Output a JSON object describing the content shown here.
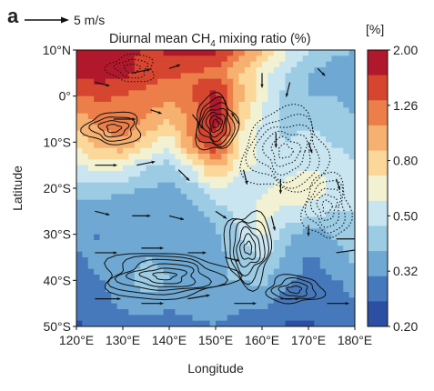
{
  "figure": {
    "panel_label": "a",
    "reference_vector": {
      "label": "5 m/s",
      "speed": 5
    }
  },
  "chart_data": {
    "type": "heatmap",
    "title": "Diurnal mean CH",
    "title_sub": "4",
    "title_end": " mixing ratio (%)",
    "xlabel": "Longitude",
    "ylabel": "Latitude",
    "xlim": [
      120,
      180
    ],
    "ylim": [
      -50,
      10
    ],
    "x_ticks": [
      120,
      130,
      140,
      150,
      160,
      170,
      180
    ],
    "x_tick_labels": [
      "120°E",
      "130°E",
      "140°E",
      "150°E",
      "160°E",
      "170°E",
      "180°E"
    ],
    "y_ticks": [
      10,
      0,
      -10,
      -20,
      -30,
      -40,
      -50
    ],
    "y_tick_labels": [
      "10°N",
      "0°",
      "10°S",
      "20°S",
      "30°S",
      "40°S",
      "50°S"
    ],
    "colorbar": {
      "unit_label": "[%]",
      "tick_labels": [
        "2.00",
        "1.26",
        "0.80",
        "0.50",
        "0.32",
        "0.20"
      ],
      "levels": [
        2.0,
        1.6,
        1.26,
        1.0,
        0.8,
        0.63,
        0.5,
        0.4,
        0.32,
        0.25,
        0.2
      ],
      "colors": [
        "#b2182b",
        "#d6452f",
        "#ec7e4a",
        "#f6b070",
        "#fbd79a",
        "#f2f2d2",
        "#c9e5f0",
        "#9ccbe4",
        "#6fa9d3",
        "#4679bc",
        "#2c4fa3"
      ]
    },
    "field_grid": {
      "lon": [
        120,
        125,
        130,
        135,
        140,
        145,
        150,
        155,
        160,
        165,
        170,
        175,
        180
      ],
      "lat": [
        10,
        5,
        0,
        -5,
        -10,
        -15,
        -20,
        -25,
        -30,
        -35,
        -40,
        -45,
        -50
      ],
      "ch4_percent": [
        [
          1.8,
          2.0,
          2.0,
          1.7,
          1.9,
          2.0,
          1.9,
          1.3,
          0.9,
          0.6,
          0.45,
          0.38,
          0.36
        ],
        [
          1.9,
          2.0,
          1.9,
          1.6,
          1.5,
          1.4,
          1.3,
          0.9,
          0.6,
          0.45,
          0.36,
          0.33,
          0.32
        ],
        [
          1.4,
          1.5,
          1.4,
          1.3,
          1.2,
          1.4,
          2.0,
          1.0,
          0.6,
          0.42,
          0.36,
          0.36,
          0.34
        ],
        [
          1.0,
          1.2,
          1.3,
          1.1,
          0.9,
          1.2,
          2.0,
          0.8,
          0.55,
          0.4,
          0.4,
          0.4,
          0.36
        ],
        [
          0.75,
          1.0,
          1.1,
          0.8,
          0.6,
          1.2,
          1.8,
          0.7,
          0.5,
          0.45,
          0.5,
          0.45,
          0.4
        ],
        [
          0.55,
          0.65,
          0.6,
          0.45,
          0.4,
          0.6,
          1.0,
          0.6,
          0.55,
          0.5,
          0.55,
          0.5,
          0.45
        ],
        [
          0.4,
          0.4,
          0.38,
          0.36,
          0.34,
          0.4,
          0.55,
          0.5,
          0.55,
          0.6,
          0.7,
          0.55,
          0.5
        ],
        [
          0.33,
          0.32,
          0.3,
          0.3,
          0.3,
          0.32,
          0.4,
          0.48,
          0.6,
          0.55,
          0.5,
          0.45,
          0.45
        ],
        [
          0.3,
          0.28,
          0.3,
          0.32,
          0.32,
          0.3,
          0.34,
          0.45,
          0.6,
          0.4,
          0.3,
          0.36,
          0.45
        ],
        [
          0.28,
          0.3,
          0.32,
          0.36,
          0.34,
          0.32,
          0.34,
          0.38,
          0.45,
          0.34,
          0.28,
          0.3,
          0.38
        ],
        [
          0.26,
          0.28,
          0.32,
          0.4,
          0.36,
          0.34,
          0.36,
          0.36,
          0.38,
          0.3,
          0.26,
          0.28,
          0.3
        ],
        [
          0.24,
          0.26,
          0.3,
          0.34,
          0.3,
          0.32,
          0.34,
          0.3,
          0.3,
          0.26,
          0.24,
          0.26,
          0.28
        ],
        [
          0.22,
          0.23,
          0.24,
          0.25,
          0.24,
          0.26,
          0.28,
          0.25,
          0.24,
          0.22,
          0.22,
          0.23,
          0.24
        ]
      ]
    },
    "solid_contour_centers": [
      {
        "lon": 150,
        "lat": -6,
        "rx": 4.5,
        "ry": 6,
        "rings": 7
      },
      {
        "lon": 128,
        "lat": -7,
        "rx": 6,
        "ry": 3.5,
        "rings": 4
      },
      {
        "lon": 139,
        "lat": -39,
        "rx": 14,
        "ry": 5,
        "rings": 6
      },
      {
        "lon": 167,
        "lat": -42,
        "rx": 6,
        "ry": 3,
        "rings": 4
      },
      {
        "lon": 157,
        "lat": -33,
        "rx": 5,
        "ry": 8,
        "rings": 6
      }
    ],
    "dashed_contour_centers": [
      {
        "lon": 165,
        "lat": -12,
        "rx": 9,
        "ry": 9,
        "rings": 6
      },
      {
        "lon": 174,
        "lat": -24,
        "rx": 5,
        "ry": 7,
        "rings": 5
      },
      {
        "lon": 132,
        "lat": 6,
        "rx": 5,
        "ry": 3,
        "rings": 3
      }
    ],
    "wind_vectors": [
      {
        "lon": 124,
        "lat": 3,
        "u": 2.0,
        "v": -0.5
      },
      {
        "lon": 132,
        "lat": 5,
        "u": 2.5,
        "v": 0.5
      },
      {
        "lon": 140,
        "lat": 6,
        "u": 1.5,
        "v": 0.5
      },
      {
        "lon": 160,
        "lat": 5,
        "u": 0.0,
        "v": -2.0
      },
      {
        "lon": 166,
        "lat": 3,
        "u": -0.5,
        "v": -2.0
      },
      {
        "lon": 172,
        "lat": 6,
        "u": 1.0,
        "v": -1.0
      },
      {
        "lon": 128,
        "lat": -5,
        "u": 3.0,
        "v": 0.0
      },
      {
        "lon": 136,
        "lat": -3,
        "u": 1.5,
        "v": -0.5
      },
      {
        "lon": 145,
        "lat": -4,
        "u": 1.5,
        "v": -2.0
      },
      {
        "lon": 155,
        "lat": -6,
        "u": -1.0,
        "v": 1.5
      },
      {
        "lon": 163,
        "lat": -8,
        "u": 0.0,
        "v": -2.0
      },
      {
        "lon": 170,
        "lat": -10,
        "u": 0.5,
        "v": -1.5
      },
      {
        "lon": 124,
        "lat": -15,
        "u": 3.0,
        "v": 0.0
      },
      {
        "lon": 133,
        "lat": -15,
        "u": 2.5,
        "v": 0.5
      },
      {
        "lon": 142,
        "lat": -16,
        "u": 1.5,
        "v": -1.5
      },
      {
        "lon": 156,
        "lat": -16,
        "u": 0.5,
        "v": -2.0
      },
      {
        "lon": 164,
        "lat": -18,
        "u": 0.0,
        "v": -2.0
      },
      {
        "lon": 176,
        "lat": -18,
        "u": 0.5,
        "v": -1.5
      },
      {
        "lon": 124,
        "lat": -25,
        "u": 2.0,
        "v": -0.5
      },
      {
        "lon": 132,
        "lat": -26,
        "u": 2.5,
        "v": 0.0
      },
      {
        "lon": 140,
        "lat": -26,
        "u": 2.0,
        "v": -0.5
      },
      {
        "lon": 150,
        "lat": -25,
        "u": 1.5,
        "v": -1.0
      },
      {
        "lon": 162,
        "lat": -26,
        "u": 0.5,
        "v": -2.0
      },
      {
        "lon": 170,
        "lat": -28,
        "u": 0.0,
        "v": -1.5
      },
      {
        "lon": 124,
        "lat": -34,
        "u": 3.0,
        "v": 0.0
      },
      {
        "lon": 134,
        "lat": -33,
        "u": 3.0,
        "v": 0.0
      },
      {
        "lon": 144,
        "lat": -34,
        "u": 2.5,
        "v": 0.0
      },
      {
        "lon": 152,
        "lat": -35,
        "u": 2.0,
        "v": -0.5
      },
      {
        "lon": 176,
        "lat": -31,
        "u": 3.5,
        "v": 0.0
      },
      {
        "lon": 176,
        "lat": -34,
        "u": 3.5,
        "v": 0.5
      },
      {
        "lon": 124,
        "lat": -44,
        "u": 3.5,
        "v": 0.0
      },
      {
        "lon": 134,
        "lat": -45,
        "u": 3.0,
        "v": 0.0
      },
      {
        "lon": 144,
        "lat": -44,
        "u": 3.0,
        "v": 0.5
      },
      {
        "lon": 154,
        "lat": -45,
        "u": 3.0,
        "v": 0.0
      },
      {
        "lon": 164,
        "lat": -44,
        "u": 2.5,
        "v": 0.0
      },
      {
        "lon": 174,
        "lat": -45,
        "u": 3.0,
        "v": 0.0
      }
    ]
  }
}
